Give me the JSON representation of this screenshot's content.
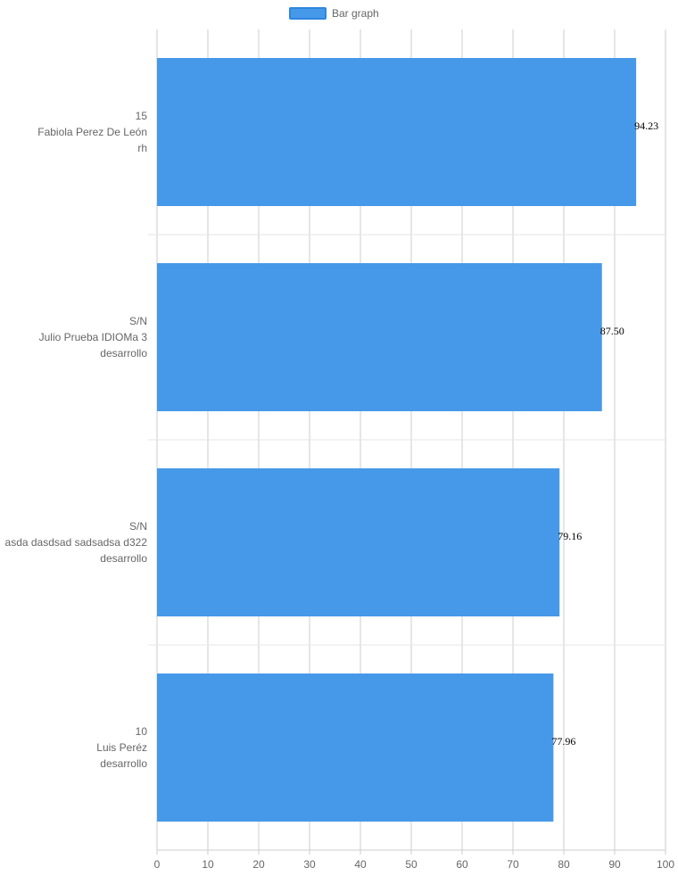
{
  "chart_data": {
    "type": "bar",
    "orientation": "horizontal",
    "legend": {
      "position": "top",
      "entries": [
        "Bar graph"
      ]
    },
    "categories": [
      [
        "15",
        "Fabiola Perez De León",
        "rh"
      ],
      [
        "S/N",
        "Julio Prueba IDIOMa 3",
        "desarrollo"
      ],
      [
        "S/N",
        "asda dasdsad sadsadsa d322",
        "desarrollo"
      ],
      [
        "10",
        "Luis Peréz",
        "desarrollo"
      ]
    ],
    "series": [
      {
        "name": "Bar graph",
        "values": [
          94.23,
          87.5,
          79.16,
          77.96
        ]
      }
    ],
    "data_labels": [
      "94.23",
      "87.50",
      "79.16",
      "77.96"
    ],
    "xlim": [
      0,
      100
    ],
    "xticks": [
      0,
      10,
      20,
      30,
      40,
      50,
      60,
      70,
      80,
      90,
      100
    ],
    "grid": true,
    "colors": {
      "bar_fill": "#4699E8",
      "bar_border": "#2E86DE",
      "grid": "#cccccc",
      "category_separator": "#e6e6e6"
    }
  }
}
